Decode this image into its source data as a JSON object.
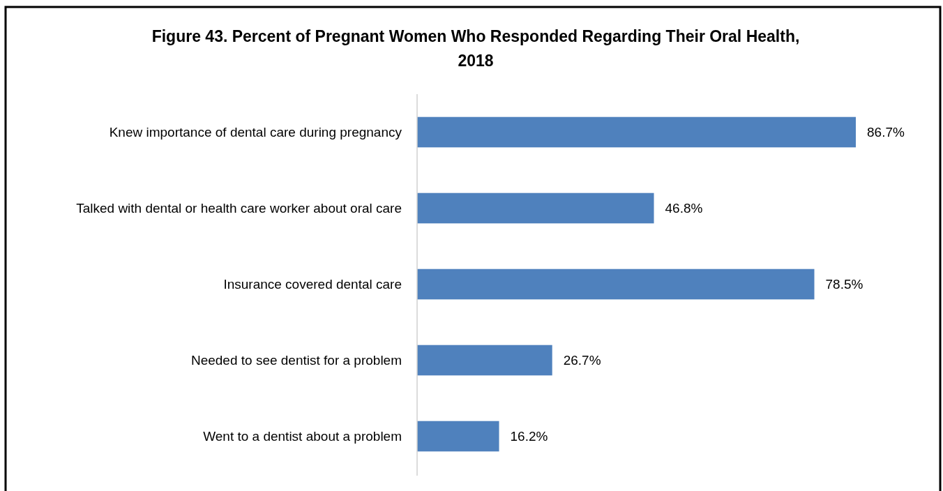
{
  "chart_data": {
    "type": "bar",
    "orientation": "horizontal",
    "title": "Figure 43. Percent of Pregnant Women Who Responded Regarding Their Oral Health, 2018",
    "categories": [
      "Knew importance of dental care during pregnancy",
      "Talked with dental or health care worker about oral care",
      "Insurance covered dental care",
      "Needed to see dentist for a problem",
      "Went to a dentist about a problem"
    ],
    "values": [
      86.7,
      46.8,
      78.5,
      26.7,
      16.2
    ],
    "value_labels": [
      "86.7%",
      "46.8%",
      "78.5%",
      "26.7%",
      "16.2%"
    ],
    "color": "#4f81bd"
  }
}
